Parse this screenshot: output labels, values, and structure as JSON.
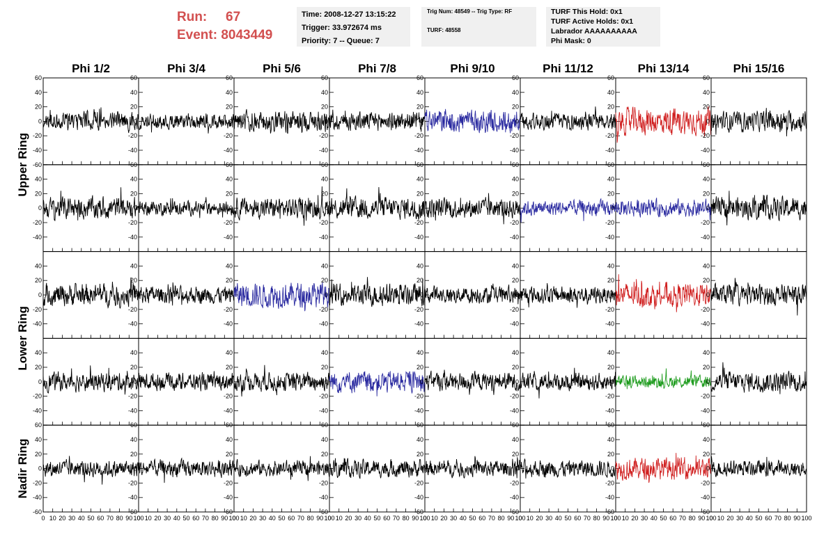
{
  "header": {
    "run_label": "Run:",
    "run_value": "67",
    "event_label": "Event:",
    "event_value": "8043449"
  },
  "info_time": {
    "time": "Time: 2008-12-27 13:15:22",
    "trigger": "Trigger: 33.972674 ms",
    "priority": "Priority: 7 -- Queue: 7"
  },
  "info_trig": {
    "trig": "Trig Num: 48549 -- Trig Type: RF",
    "turf": "TURF: 48558"
  },
  "info_turf": {
    "this_hold": "TURF This Hold: 0x1",
    "active_holds": "TURF Active Holds: 0x1",
    "labrador": "Labrador AAAAAAAAAA",
    "phi_mask": "Phi Mask: 0"
  },
  "chart_data": {
    "type": "line",
    "columns": [
      "Phi 1/2",
      "Phi 3/4",
      "Phi 5/6",
      "Phi 7/8",
      "Phi 9/10",
      "Phi 11/12",
      "Phi 13/14",
      "Phi 15/16"
    ],
    "rows": [
      {
        "label": "Upper Ring",
        "span": 2
      },
      {
        "label": "Lower Ring",
        "span": 2
      },
      {
        "label": "Nadir Ring",
        "span": 1
      }
    ],
    "xlim": [
      0,
      100
    ],
    "ylim": [
      -60,
      60
    ],
    "x_ticks": [
      0,
      10,
      20,
      30,
      40,
      50,
      60,
      70,
      80,
      90,
      100
    ],
    "y_ticks": [
      -60,
      -40,
      -20,
      0,
      20,
      40,
      60
    ],
    "samples_per_trace": 260,
    "colors": {
      "normal": "#000000",
      "blue": "#2a2aa0",
      "red": "#d02020",
      "green": "#1a9a1a"
    },
    "highlights": [
      {
        "row": 0,
        "col": 4,
        "color": "blue"
      },
      {
        "row": 0,
        "col": 6,
        "color": "red"
      },
      {
        "row": 1,
        "col": 5,
        "color": "blue"
      },
      {
        "row": 1,
        "col": 6,
        "color": "blue"
      },
      {
        "row": 2,
        "col": 2,
        "color": "blue"
      },
      {
        "row": 2,
        "col": 6,
        "color": "red"
      },
      {
        "row": 3,
        "col": 3,
        "color": "blue"
      },
      {
        "row": 3,
        "col": 6,
        "color": "green"
      },
      {
        "row": 4,
        "col": 6,
        "color": "red"
      }
    ],
    "amplitudes": [
      [
        12,
        10,
        13,
        12,
        15,
        11,
        17,
        13
      ],
      [
        14,
        9,
        13,
        14,
        13,
        10,
        11,
        14
      ],
      [
        14,
        11,
        16,
        14,
        11,
        11,
        15,
        13
      ],
      [
        12,
        11,
        12,
        14,
        12,
        11,
        8,
        13
      ],
      [
        11,
        11,
        10,
        11,
        10,
        11,
        14,
        10
      ]
    ]
  }
}
